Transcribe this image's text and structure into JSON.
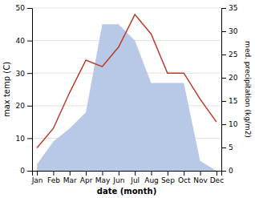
{
  "chart_data": {
    "type": "line",
    "x_label": "date (month)",
    "y_label": "max temp (C)",
    "y2_label": "med. precipitation (kg/m2)",
    "categories": [
      "Jan",
      "Feb",
      "Mar",
      "Apr",
      "May",
      "Jun",
      "Jul",
      "Aug",
      "Sep",
      "Oct",
      "Nov",
      "Dec"
    ],
    "series": [
      {
        "type": "area",
        "color": "#b8c9e8",
        "values": [
          2,
          9,
          13,
          18,
          45,
          45,
          40,
          27,
          27,
          27,
          3,
          0
        ]
      },
      {
        "type": "line",
        "color": "#c0392b",
        "values": [
          7,
          13,
          24,
          34,
          32,
          38,
          48,
          42,
          30,
          30,
          22,
          15
        ]
      }
    ],
    "ylim": [
      0,
      50
    ],
    "yticks": [
      0,
      10,
      20,
      30,
      40,
      50
    ],
    "y2lim": [
      0,
      35
    ],
    "y2ticks": [
      0,
      5,
      10,
      15,
      20,
      25,
      30,
      35
    ],
    "grid": true
  }
}
